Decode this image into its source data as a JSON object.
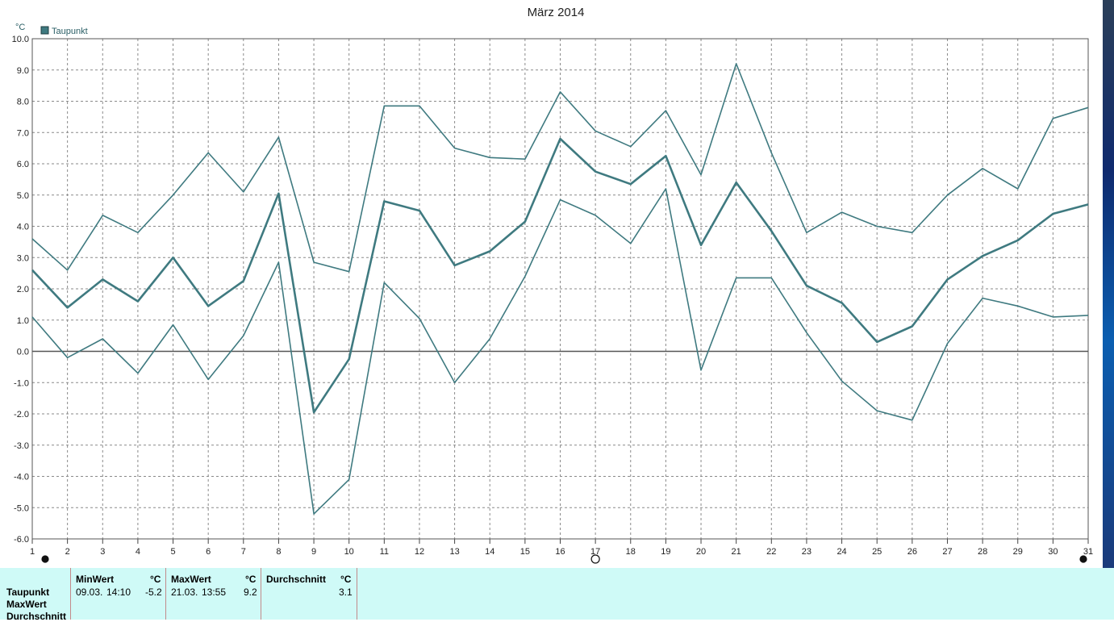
{
  "chart_data": {
    "type": "line",
    "title": "März 2014",
    "yunit": "°C",
    "ylim": [
      -6.0,
      10.0
    ],
    "yticks": [
      "10.0",
      "9.0",
      "8.0",
      "7.0",
      "6.0",
      "5.0",
      "4.0",
      "3.0",
      "2.0",
      "1.0",
      "0.0",
      "-1.0",
      "-2.0",
      "-3.0",
      "-4.0",
      "-5.0",
      "-6.0"
    ],
    "x": [
      "1",
      "2",
      "3",
      "4",
      "5",
      "6",
      "7",
      "8",
      "9",
      "10",
      "11",
      "12",
      "13",
      "14",
      "15",
      "16",
      "17",
      "18",
      "19",
      "20",
      "21",
      "22",
      "23",
      "24",
      "25",
      "26",
      "27",
      "28",
      "29",
      "30",
      "31"
    ],
    "legend": {
      "label": "Taupunkt",
      "color": "#3f7a80",
      "position": "top-left"
    },
    "grid": true,
    "series": [
      {
        "values": [
          3.6,
          2.6,
          4.35,
          3.8,
          5.0,
          6.35,
          5.1,
          6.85,
          2.85,
          2.55,
          7.85,
          7.85,
          6.5,
          6.2,
          6.15,
          8.3,
          7.05,
          6.55,
          7.7,
          5.65,
          9.2,
          6.35,
          3.8,
          4.45,
          4.0,
          3.8,
          5.0,
          5.85,
          5.2,
          7.45,
          7.8
        ]
      },
      {
        "values": [
          2.6,
          1.4,
          2.3,
          1.6,
          3.0,
          1.45,
          2.25,
          5.05,
          -1.95,
          -0.25,
          4.8,
          4.5,
          2.75,
          3.2,
          4.15,
          6.8,
          5.75,
          5.35,
          6.25,
          3.4,
          5.4,
          3.85,
          2.1,
          1.55,
          0.3,
          0.8,
          2.3,
          3.05,
          3.55,
          4.4,
          4.7
        ]
      },
      {
        "values": [
          1.1,
          -0.2,
          0.4,
          -0.7,
          0.85,
          -0.9,
          0.5,
          2.85,
          -5.2,
          -4.1,
          2.2,
          1.05,
          -1.0,
          0.4,
          2.4,
          4.85,
          4.35,
          3.45,
          5.2,
          -0.6,
          2.35,
          2.35,
          0.6,
          -0.95,
          -1.9,
          -2.2,
          0.25,
          1.7,
          1.45,
          1.1,
          1.15
        ]
      }
    ],
    "markers": [
      {
        "day": "1",
        "shape": "filled-circle"
      },
      {
        "day": "17",
        "shape": "open-circle"
      },
      {
        "day": "31",
        "shape": "filled-circle"
      }
    ]
  },
  "stats": {
    "row_labels": [
      "Taupunkt",
      "MaxWert",
      "Durchschnitt"
    ],
    "columns": [
      {
        "header": "MinWert",
        "unit": "°C",
        "date": "09.03.",
        "time": "14:10",
        "value": "-5.2"
      },
      {
        "header": "MaxWert",
        "unit": "°C",
        "date": "21.03.",
        "time": "13:55",
        "value": "9.2"
      },
      {
        "header": "Durchschnitt",
        "unit": "°C",
        "value": "3.1"
      }
    ]
  }
}
